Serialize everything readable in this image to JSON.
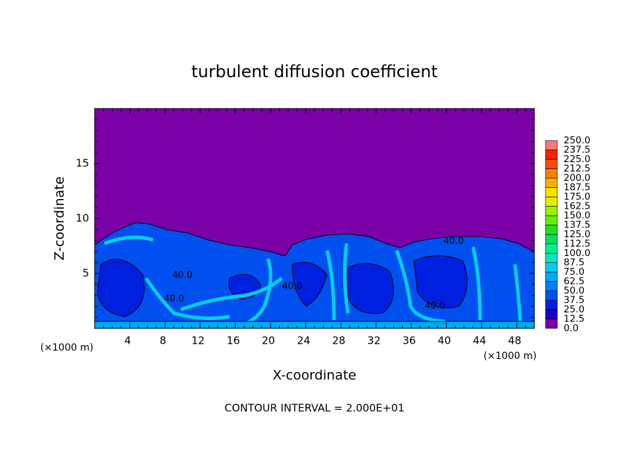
{
  "chart_data": {
    "type": "contour",
    "title": "turbulent diffusion coefficient",
    "x_label": "X-coordinate",
    "y_label": "Z-coordinate",
    "x_unit_labels": [
      "(×1000 m)",
      "(×1000 m)"
    ],
    "annotation": "CONTOUR INTERVAL = 2.000E+01",
    "xlim": [
      0,
      50
    ],
    "ylim": [
      0,
      20
    ],
    "xticks": [
      4,
      8,
      12,
      16,
      20,
      24,
      28,
      32,
      36,
      40,
      44,
      48
    ],
    "yticks": [
      5,
      10,
      15
    ],
    "background_color": "#7a00a8",
    "contour_labels": [
      {
        "value": 40,
        "label": "40.0"
      },
      {
        "value": 40,
        "label": "40.0"
      },
      {
        "value": 40,
        "label": "40.0"
      },
      {
        "value": 40,
        "label": "40.0"
      },
      {
        "value": 40,
        "label": "40.0"
      }
    ],
    "colorbar": {
      "ticks": [
        {
          "value": 0,
          "label": "0.0"
        },
        12.5,
        {
          "value": 25,
          "label": "25.0"
        },
        37.5,
        {
          "value": 50,
          "label": "50.0"
        },
        62.5,
        {
          "value": 75,
          "label": "75.0"
        },
        87.5,
        {
          "value": 100,
          "label": "100.0"
        },
        112.5,
        {
          "value": 125,
          "label": "125.0"
        },
        137.5,
        {
          "value": 150,
          "label": "150.0"
        },
        162.5,
        {
          "value": 175,
          "label": "175.0"
        },
        187.5,
        {
          "value": 200,
          "label": "200.0"
        },
        212.5,
        {
          "value": 225,
          "label": "225.0"
        },
        237.5,
        {
          "value": 250,
          "label": "250.0"
        }
      ],
      "colors": [
        "#7a00a8",
        "#1a00c8",
        "#0020e0",
        "#0050f0",
        "#0080f8",
        "#00a8f8",
        "#00d0f0",
        "#00e8c0",
        "#00f090",
        "#00e060",
        "#20e020",
        "#60f000",
        "#a0f000",
        "#e0f000",
        "#f8e000",
        "#f8b000",
        "#f88000",
        "#f85000",
        "#f82000",
        "#f87878"
      ]
    }
  }
}
